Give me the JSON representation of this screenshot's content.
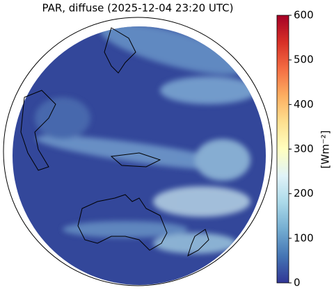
{
  "chart_data": {
    "type": "map",
    "title": "PAR, diffuse (2025-12-04 23:20 UTC)",
    "colorbar_label": "[Wm⁻²]",
    "clim": [
      0,
      600
    ],
    "cticks": [
      0,
      100,
      200,
      300,
      400,
      500,
      600
    ],
    "colormap": [
      "#313695",
      "#4575b4",
      "#74add1",
      "#abd9e9",
      "#e0f3f8",
      "#ffffbf",
      "#fee090",
      "#fdae61",
      "#f46d43",
      "#d73027",
      "#a50026"
    ]
  }
}
